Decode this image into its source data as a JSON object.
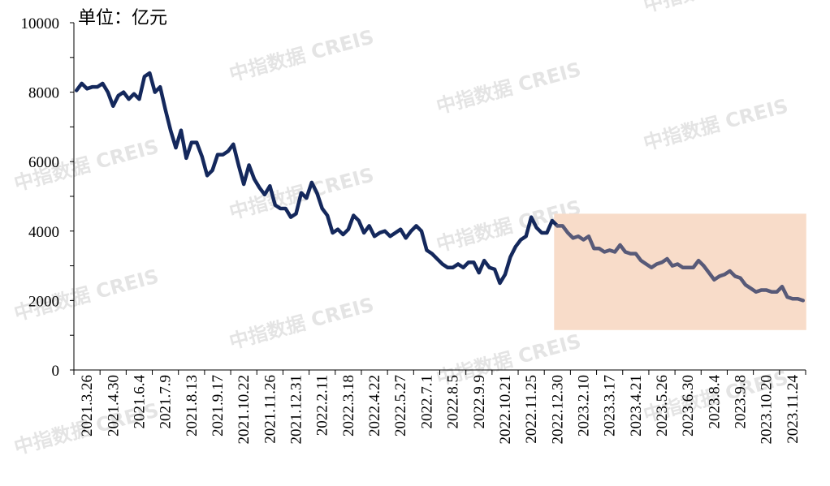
{
  "chart_data": {
    "type": "line",
    "unit_label": "单位：亿元",
    "ylim": [
      0,
      10000
    ],
    "yticks": [
      0,
      2000,
      4000,
      6000,
      8000,
      10000
    ],
    "x_tick_labels": [
      "2021.3.26",
      "2021.4.30",
      "2021.6.4",
      "2021.7.9",
      "2021.8.13",
      "2021.9.17",
      "2021.10.22",
      "2021.11.26",
      "2021.12.31",
      "2022.2.11",
      "2022.3.18",
      "2022.4.22",
      "2022.5.27",
      "2022.7.1",
      "2022.8.5",
      "2022.9.9",
      "2022.10.21",
      "2022.11.25",
      "2022.12.30",
      "2023.2.10",
      "2023.3.17",
      "2023.4.21",
      "2023.5.26",
      "2023.6.30",
      "2023.8.4",
      "2023.9.8",
      "2023.10.20",
      "2023.11.24"
    ],
    "highlight_region": {
      "from_index": 92,
      "to_index": 139,
      "y_range": [
        1150,
        4500
      ],
      "color": "#f8dcc9"
    },
    "series": [
      {
        "color": "#14285c",
        "highlight_color": "#585a78",
        "values": [
          8050,
          8250,
          8100,
          8150,
          8150,
          8250,
          8000,
          7600,
          7900,
          8000,
          7800,
          7950,
          7800,
          8450,
          8550,
          8000,
          8150,
          7500,
          6900,
          6400,
          6900,
          6100,
          6550,
          6550,
          6150,
          5600,
          5750,
          6200,
          6200,
          6300,
          6500,
          5900,
          5350,
          5900,
          5500,
          5250,
          5050,
          5300,
          4750,
          4650,
          4650,
          4400,
          4500,
          5100,
          4950,
          5400,
          5100,
          4650,
          4450,
          3950,
          4050,
          3900,
          4050,
          4450,
          4300,
          3950,
          4150,
          3850,
          3950,
          4000,
          3850,
          3950,
          4050,
          3800,
          4000,
          4150,
          4000,
          3450,
          3350,
          3200,
          3050,
          2950,
          2950,
          3050,
          2950,
          3100,
          3100,
          2800,
          3150,
          2950,
          2900,
          2500,
          2750,
          3250,
          3550,
          3750,
          3850,
          4400,
          4100,
          3950,
          3950,
          4300,
          4150,
          4150,
          3950,
          3800,
          3850,
          3750,
          3850,
          3500,
          3500,
          3400,
          3450,
          3400,
          3600,
          3400,
          3350,
          3350,
          3150,
          3050,
          2950,
          3050,
          3100,
          3200,
          3000,
          3050,
          2950,
          2950,
          2950,
          3150,
          3000,
          2800,
          2600,
          2700,
          2750,
          2850,
          2700,
          2650,
          2450,
          2350,
          2250,
          2300,
          2300,
          2250,
          2250,
          2400,
          2100,
          2050,
          2050,
          2000
        ]
      }
    ]
  },
  "watermark_text": "中指数据  CREIS"
}
